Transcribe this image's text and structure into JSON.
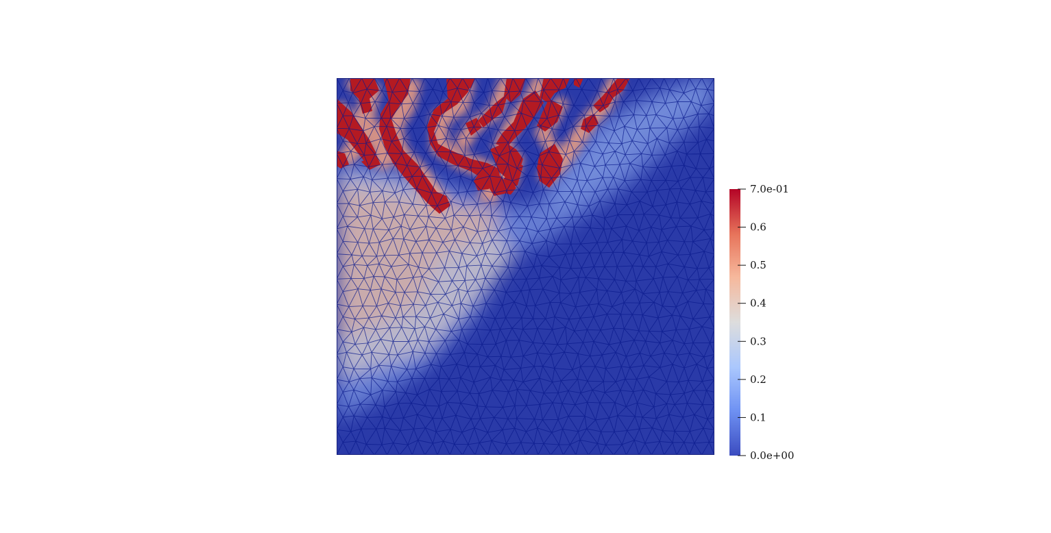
{
  "colorbar": {
    "type": "scalar-bar",
    "range": [
      0.0,
      0.7
    ],
    "colormap": "coolwarm",
    "colors": [
      "#3b4cc0",
      "#6f92f3",
      "#aac7fd",
      "#dddddd",
      "#f6b89c",
      "#e7745b",
      "#b40426"
    ],
    "ticks": [
      {
        "value": 0.7,
        "label": "7.0e-01"
      },
      {
        "value": 0.6,
        "label": "0.6"
      },
      {
        "value": 0.5,
        "label": "0.5"
      },
      {
        "value": 0.4,
        "label": "0.4"
      },
      {
        "value": 0.3,
        "label": "0.3"
      },
      {
        "value": 0.2,
        "label": "0.2"
      },
      {
        "value": 0.1,
        "label": "0.1"
      },
      {
        "value": 0.0,
        "label": "0.0e+00"
      }
    ]
  },
  "mesh": {
    "type": "triangulated-mesh",
    "background_value": 0.05,
    "edge_color": "#0a1a8c"
  }
}
